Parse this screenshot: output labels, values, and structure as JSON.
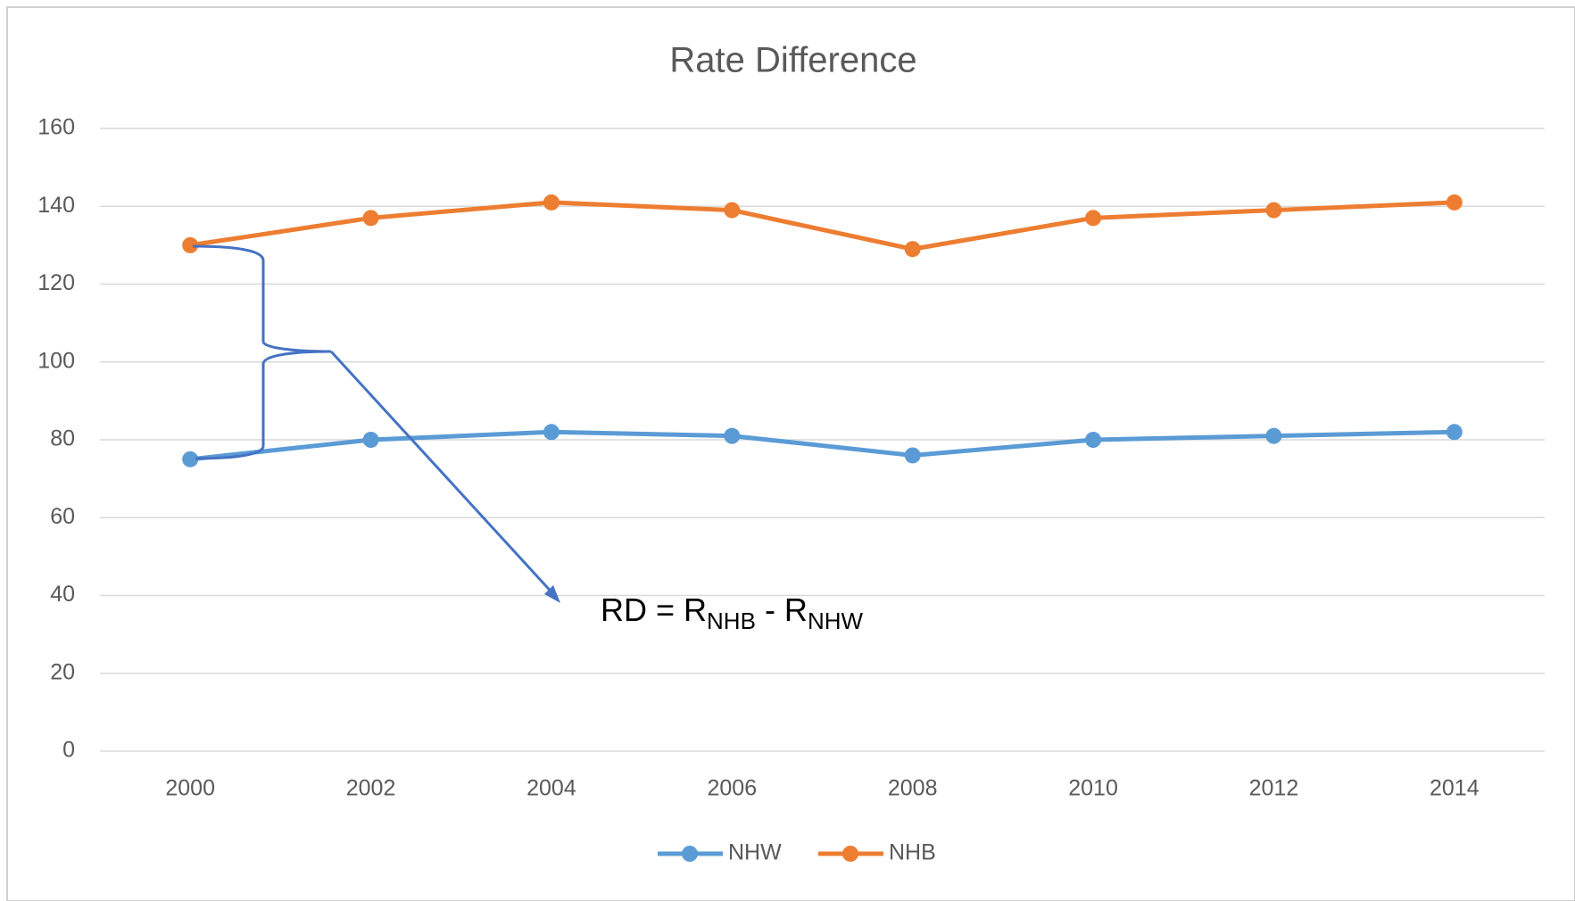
{
  "chart_data": {
    "type": "line",
    "title": "Rate Difference",
    "categories": [
      "2000",
      "2002",
      "2004",
      "2006",
      "2008",
      "2010",
      "2012",
      "2014"
    ],
    "series": [
      {
        "name": "NHW",
        "color": "#5b9bd5",
        "values": [
          75,
          80,
          82,
          81,
          76,
          80,
          81,
          82
        ]
      },
      {
        "name": "NHB",
        "color": "#ed7d31",
        "values": [
          130,
          137,
          141,
          139,
          129,
          137,
          139,
          141
        ]
      }
    ],
    "ylim": [
      0,
      160
    ],
    "yticks": [
      0,
      20,
      40,
      60,
      80,
      100,
      120,
      140,
      160
    ],
    "grid": true,
    "legend": "bottom",
    "annotation": [
      "RD = R",
      "NHB",
      " - R",
      "NHW"
    ]
  }
}
